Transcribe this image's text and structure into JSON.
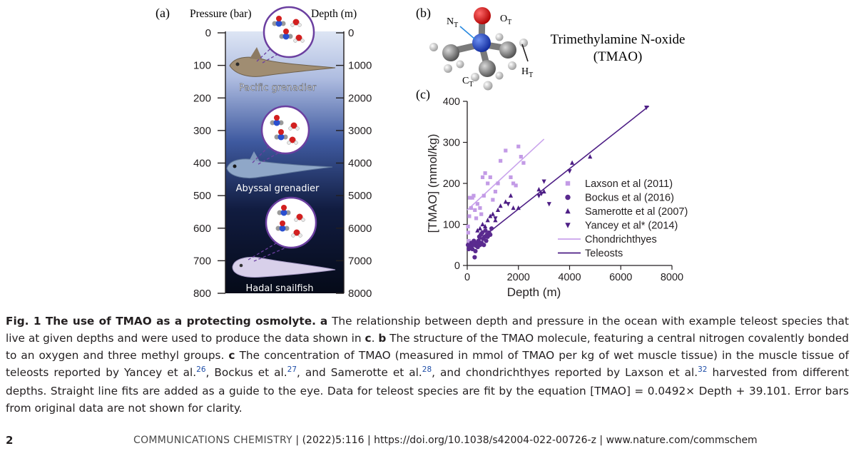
{
  "panel_a": {
    "label": "(a)",
    "pressure_header": "Pressure (bar)",
    "depth_header": "Depth (m)",
    "pressure_ticks": [
      "0",
      "100",
      "200",
      "300",
      "400",
      "500",
      "600",
      "700",
      "800"
    ],
    "depth_ticks": [
      "0",
      "1000",
      "2000",
      "3000",
      "4000",
      "5000",
      "6000",
      "7000",
      "8000"
    ],
    "fish": [
      {
        "name": "Pacific grenadier",
        "depth_m": 1200
      },
      {
        "name": "Abyssal grenadier",
        "depth_m": 4500
      },
      {
        "name": "Hadal snailfish",
        "depth_m": 7400
      }
    ],
    "colors": {
      "surface": "#dde5f4",
      "mid": "#3f5aa0",
      "deep": "#050a18"
    }
  },
  "panel_b": {
    "label": "(b)",
    "molecule_name_line1": "Trimethylamine N-oxide",
    "molecule_name_line2": "(TMAO)",
    "atom_labels": {
      "n": "N",
      "o": "O",
      "c": "C",
      "h": "H",
      "sub": "T"
    }
  },
  "panel_c": {
    "label": "(c)",
    "chart_data": {
      "type": "scatter",
      "xlabel": "Depth (m)",
      "ylabel": "[TMAO] (mmol/kg)",
      "xlim": [
        0,
        8000
      ],
      "ylim": [
        0,
        400
      ],
      "xticks": [
        "0",
        "2000",
        "4000",
        "6000",
        "8000"
      ],
      "yticks": [
        "0",
        "100",
        "200",
        "300",
        "400"
      ],
      "legend_placement": "center-right",
      "series": [
        {
          "name": "Laxson et al (2011)",
          "marker": "square",
          "color": "#c39be6",
          "points": [
            [
              30,
              95
            ],
            [
              40,
              80
            ],
            [
              60,
              60
            ],
            [
              80,
              120
            ],
            [
              100,
              165
            ],
            [
              150,
              140
            ],
            [
              200,
              165
            ],
            [
              250,
              170
            ],
            [
              300,
              135
            ],
            [
              350,
              115
            ],
            [
              400,
              150
            ],
            [
              500,
              140
            ],
            [
              550,
              125
            ],
            [
              600,
              215
            ],
            [
              650,
              170
            ],
            [
              700,
              225
            ],
            [
              800,
              200
            ],
            [
              900,
              215
            ],
            [
              1000,
              160
            ],
            [
              1100,
              180
            ],
            [
              1200,
              200
            ],
            [
              1300,
              255
            ],
            [
              1500,
              280
            ],
            [
              1700,
              215
            ],
            [
              1800,
              200
            ],
            [
              1900,
              195
            ],
            [
              2000,
              290
            ],
            [
              2100,
              265
            ],
            [
              2200,
              250
            ]
          ]
        },
        {
          "name": "Bockus et al (2016)",
          "marker": "circle",
          "color": "#5a2a8f",
          "points": [
            [
              30,
              50
            ],
            [
              60,
              40
            ],
            [
              100,
              48
            ],
            [
              130,
              45
            ],
            [
              160,
              55
            ],
            [
              200,
              40
            ],
            [
              230,
              50
            ],
            [
              260,
              60
            ],
            [
              290,
              20
            ],
            [
              320,
              35
            ],
            [
              350,
              48
            ],
            [
              380,
              55
            ],
            [
              410,
              45
            ],
            [
              440,
              60
            ],
            [
              470,
              70
            ],
            [
              500,
              50
            ],
            [
              530,
              75
            ],
            [
              560,
              55
            ],
            [
              590,
              80
            ],
            [
              620,
              65
            ],
            [
              650,
              50
            ],
            [
              680,
              70
            ],
            [
              710,
              85
            ],
            [
              740,
              60
            ],
            [
              770,
              75
            ],
            [
              800,
              70
            ],
            [
              850,
              80
            ],
            [
              900,
              75
            ],
            [
              950,
              90
            ]
          ]
        },
        {
          "name": "Samerotte et al (2007)",
          "marker": "triangle-up",
          "color": "#4d1e85",
          "points": [
            [
              400,
              85
            ],
            [
              500,
              90
            ],
            [
              600,
              100
            ],
            [
              700,
              95
            ],
            [
              800,
              110
            ],
            [
              900,
              120
            ],
            [
              1000,
              125
            ],
            [
              1100,
              110
            ],
            [
              1200,
              135
            ],
            [
              1300,
              145
            ],
            [
              1500,
              155
            ],
            [
              1700,
              170
            ],
            [
              1800,
              140
            ],
            [
              2000,
              140
            ],
            [
              2800,
              185
            ],
            [
              3000,
              180
            ],
            [
              4100,
              250
            ],
            [
              4800,
              265
            ]
          ]
        },
        {
          "name": "Yancey et al* (2014)",
          "marker": "triangle-down",
          "color": "#4d1e85",
          "points": [
            [
              1100,
              115
            ],
            [
              1600,
              150
            ],
            [
              2800,
              170
            ],
            [
              2900,
              175
            ],
            [
              3000,
              205
            ],
            [
              3200,
              150
            ],
            [
              4000,
              230
            ],
            [
              7000,
              385
            ]
          ]
        }
      ],
      "fits": [
        {
          "name": "Chondrichthyes",
          "color": "#c9a3ec",
          "x": [
            0,
            3000
          ],
          "y": [
            135,
            308
          ]
        },
        {
          "name": "Teleosts",
          "color": "#4d1e85",
          "x": [
            0,
            7100
          ],
          "y": [
            39.101,
            388.4
          ]
        }
      ]
    }
  },
  "caption": {
    "label": "Fig. 1",
    "title": "The use of TMAO as a protecting osmolyte.",
    "a_key": "a",
    "a_text": "The relationship between depth and pressure in the ocean with example teleost species that live at given depths and were used to produce the data shown in",
    "a_ref": "c",
    "b_key": "b",
    "b_text": "The structure of the TMAO molecule, featuring a central nitrogen covalently bonded to an oxygen and three methyl groups.",
    "c_key": "c",
    "c_text1": "The concentration of TMAO (measured in mmol of TMAO per kg of wet muscle tissue) in the muscle tissue of teleosts reported by Yancey et al.",
    "ref1": "26",
    "c_text2": ", Bockus et al.",
    "ref2": "27",
    "c_text3": ", and Samerotte et al.",
    "ref3": "28",
    "c_text4": ", and chondrichthyes reported by Laxson et al.",
    "ref4": "32",
    "c_text5": " harvested from different depths. Straight line fits are added as a guide to the eye. Data for teleost species are fit by the equation [TMAO] = 0.0492× Depth + 39.101. Error bars from original data are not shown for clarity."
  },
  "footer": {
    "page_number": "2",
    "journal": "COMMUNICATIONS CHEMISTRY",
    "volume": "| (2022)5:116 | https://doi.org/10.1038/s42004-022-00726-z | www.nature.com/commschem"
  }
}
